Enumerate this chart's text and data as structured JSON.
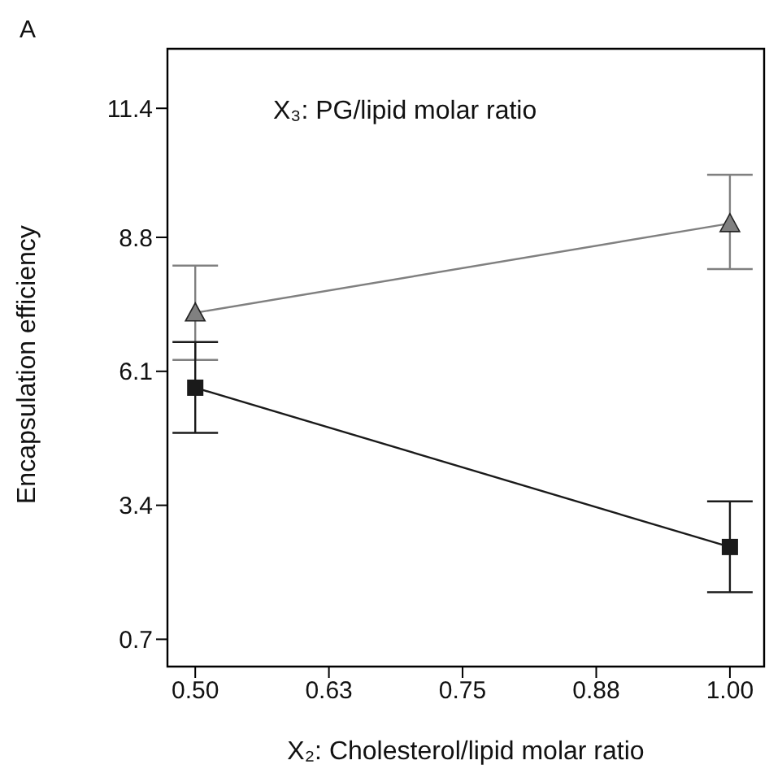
{
  "chart_data": {
    "type": "line",
    "xlabel": "X₂: Cholesterol/lipid molar ratio",
    "ylabel": "Encapsulation efficiency",
    "annotations": [
      "A",
      "X₃: PG/lipid molar ratio"
    ],
    "x": [
      0.5,
      1.0
    ],
    "series": [
      {
        "color": "#808080",
        "marker": "triangle",
        "values": [
          7.28,
          9.08
        ],
        "errors": [
          [
            6.33,
            8.23
          ],
          [
            8.16,
            10.06
          ]
        ]
      },
      {
        "color": "#1a1a1a",
        "marker": "square",
        "values": [
          5.77,
          2.56
        ],
        "errors": [
          [
            4.86,
            6.69
          ],
          [
            1.65,
            3.48
          ]
        ]
      }
    ],
    "xlim": [
      0.474,
      1.032
    ],
    "xticks": [
      {
        "value": 0.5,
        "label": "0.50"
      },
      {
        "value": 0.625,
        "label": "0.63"
      },
      {
        "value": 0.75,
        "label": "0.75"
      },
      {
        "value": 0.875,
        "label": "0.88"
      },
      {
        "value": 1.0,
        "label": "1.00"
      }
    ],
    "ylim": [
      0.15,
      12.6
    ],
    "yticks": [
      0.7,
      3.4,
      6.1,
      8.8,
      11.4
    ]
  }
}
